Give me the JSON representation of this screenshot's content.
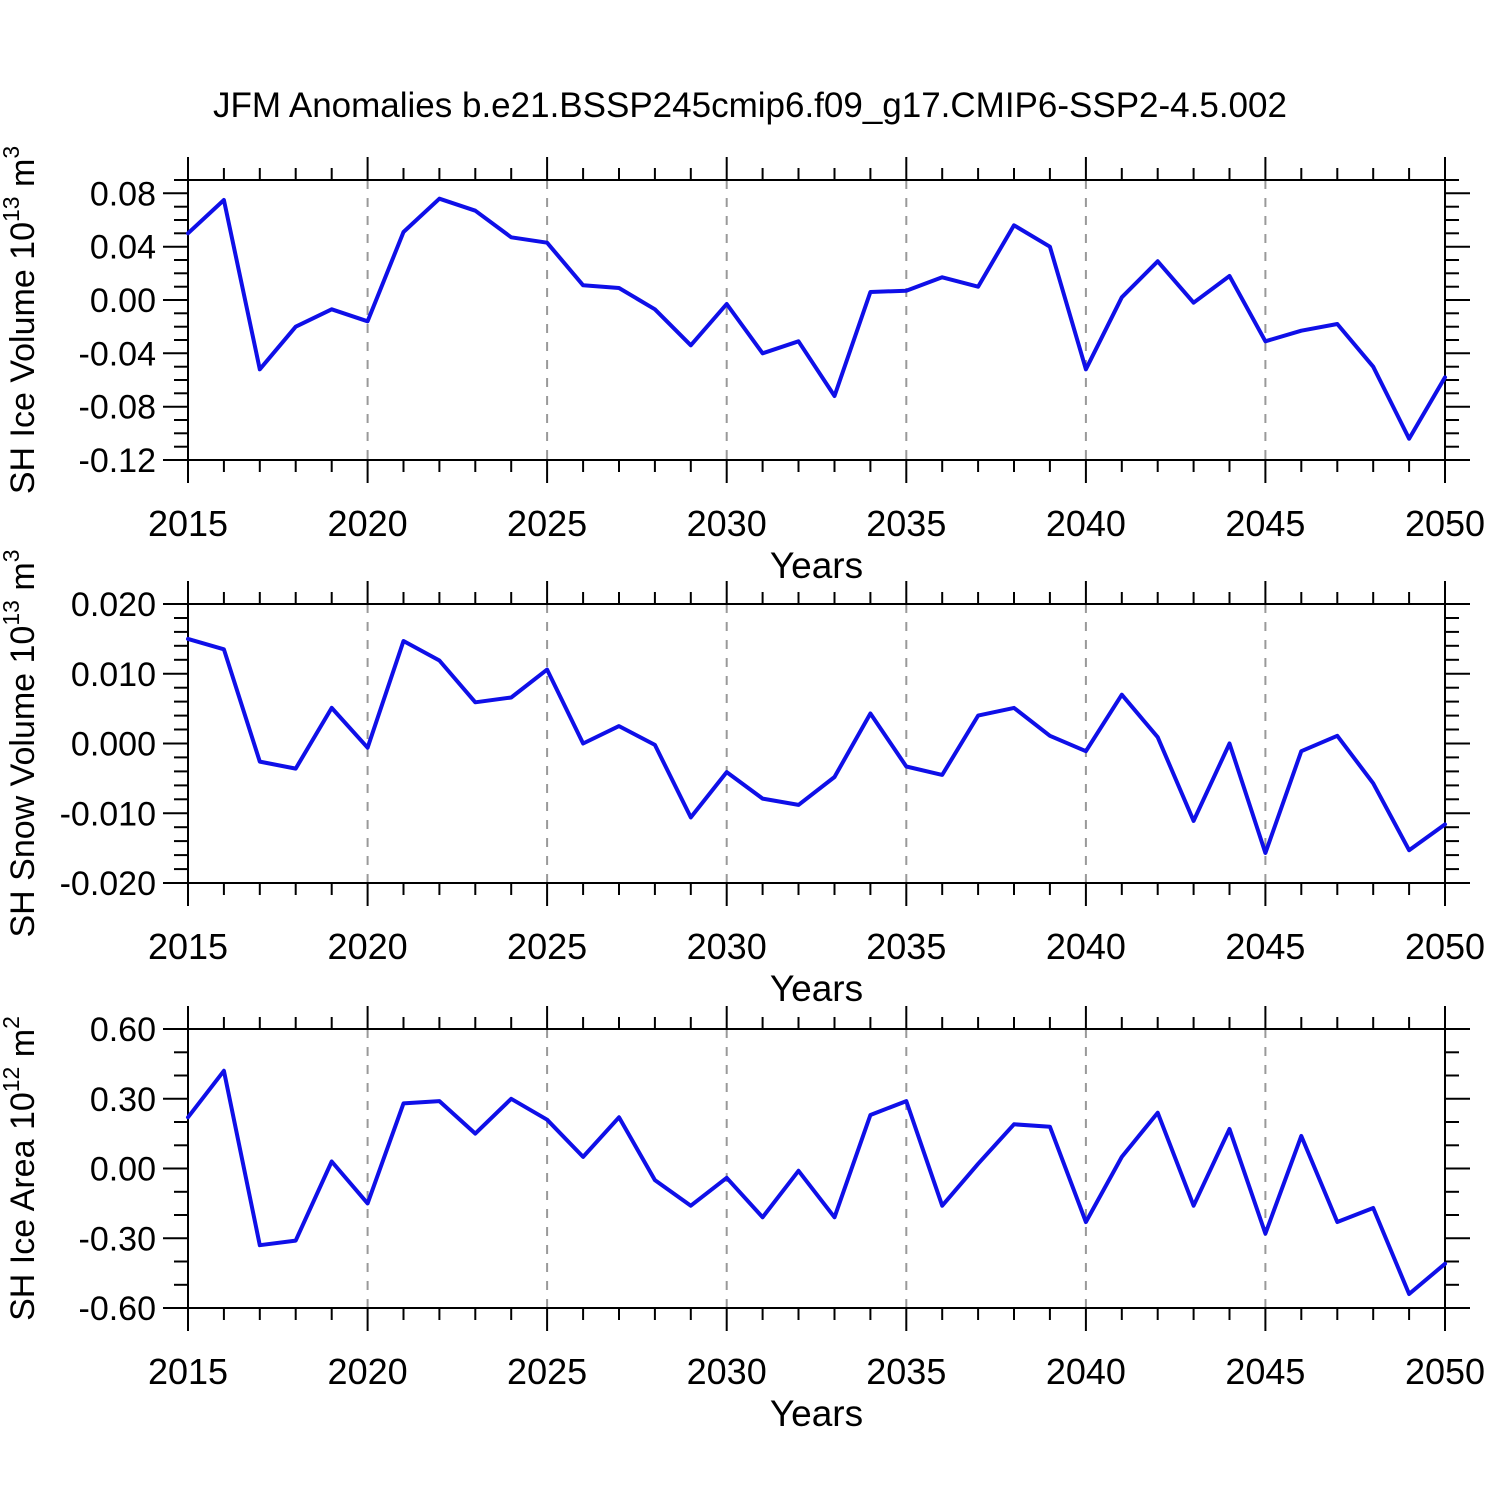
{
  "page": {
    "title": "JFM Anomalies b.e21.BSSP245cmip6.f09_g17.CMIP6-SSP2-4.5.002",
    "background_color": "#ffffff",
    "line_color": "#0f0fe8",
    "axis_color": "#000000",
    "grid_color": "#999999"
  },
  "chart_data": [
    {
      "type": "line",
      "panel": "sh-ice-volume",
      "xlabel": "Years",
      "ylabel_text": "SH Ice Volume 10^13 m^3",
      "ylabel_segments": [
        {
          "t": "SH Ice Volume 10",
          "sup": false
        },
        {
          "t": "13",
          "sup": true
        },
        {
          "t": " m",
          "sup": false
        },
        {
          "t": "3",
          "sup": true
        }
      ],
      "x": [
        2015,
        2016,
        2017,
        2018,
        2019,
        2020,
        2021,
        2022,
        2023,
        2024,
        2025,
        2026,
        2027,
        2028,
        2029,
        2030,
        2031,
        2032,
        2033,
        2034,
        2035,
        2036,
        2037,
        2038,
        2039,
        2040,
        2041,
        2042,
        2043,
        2044,
        2045,
        2046,
        2047,
        2048,
        2049,
        2050
      ],
      "series": [
        {
          "name": "SH Ice Volume anomaly",
          "values": [
            0.05,
            0.075,
            -0.052,
            -0.02,
            -0.007,
            -0.016,
            0.051,
            0.076,
            0.067,
            0.047,
            0.043,
            0.011,
            0.009,
            -0.007,
            -0.034,
            -0.003,
            -0.04,
            -0.031,
            -0.072,
            0.006,
            0.007,
            0.017,
            0.01,
            0.056,
            0.04,
            -0.052,
            0.002,
            0.029,
            -0.002,
            0.018,
            -0.031,
            -0.023,
            -0.018,
            -0.05,
            -0.104,
            -0.058
          ]
        }
      ],
      "xlim": [
        2015,
        2050
      ],
      "ylim": [
        -0.12,
        0.09
      ],
      "xticks": [
        2015,
        2020,
        2025,
        2030,
        2035,
        2040,
        2045,
        2050
      ],
      "xtick_labels": [
        "2015",
        "2020",
        "2025",
        "2030",
        "2035",
        "2040",
        "2045",
        "2050"
      ],
      "xtick_minor_step": 1,
      "yticks": [
        0.08,
        0.04,
        0.0,
        -0.04,
        -0.08,
        -0.12
      ],
      "ytick_labels": [
        "0.08",
        "0.04",
        "0.00",
        "-0.04",
        "-0.08",
        "-0.12"
      ],
      "ytick_minor_step": 0.01,
      "dashed_gridlines_x": [
        2020,
        2025,
        2030,
        2035,
        2040,
        2045
      ],
      "grid": "vertical-dashed",
      "legend": "none"
    },
    {
      "type": "line",
      "panel": "sh-snow-volume",
      "xlabel": "Years",
      "ylabel_text": "SH Snow Volume 10^13 m^3",
      "ylabel_segments": [
        {
          "t": "SH Snow Volume 10",
          "sup": false
        },
        {
          "t": "13",
          "sup": true
        },
        {
          "t": " m",
          "sup": false
        },
        {
          "t": "3",
          "sup": true
        }
      ],
      "x": [
        2015,
        2016,
        2017,
        2018,
        2019,
        2020,
        2021,
        2022,
        2023,
        2024,
        2025,
        2026,
        2027,
        2028,
        2029,
        2030,
        2031,
        2032,
        2033,
        2034,
        2035,
        2036,
        2037,
        2038,
        2039,
        2040,
        2041,
        2042,
        2043,
        2044,
        2045,
        2046,
        2047,
        2048,
        2049,
        2050
      ],
      "series": [
        {
          "name": "SH Snow Volume anomaly",
          "values": [
            0.015,
            0.0135,
            -0.0026,
            -0.0036,
            0.0051,
            -0.0006,
            0.0147,
            0.0119,
            0.0059,
            0.0066,
            0.0106,
            0.0,
            0.0025,
            -0.0002,
            -0.0106,
            -0.0041,
            -0.0079,
            -0.0088,
            -0.0048,
            0.0043,
            -0.0033,
            -0.0045,
            0.004,
            0.0051,
            0.0011,
            -0.0011,
            0.007,
            0.0009,
            -0.0111,
            0.0,
            -0.0157,
            -0.0011,
            0.0011,
            -0.0057,
            -0.0153,
            -0.0116
          ]
        }
      ],
      "xlim": [
        2015,
        2050
      ],
      "ylim": [
        -0.02,
        0.02
      ],
      "xticks": [
        2015,
        2020,
        2025,
        2030,
        2035,
        2040,
        2045,
        2050
      ],
      "xtick_labels": [
        "2015",
        "2020",
        "2025",
        "2030",
        "2035",
        "2040",
        "2045",
        "2050"
      ],
      "xtick_minor_step": 1,
      "yticks": [
        0.02,
        0.01,
        0.0,
        -0.01,
        -0.02
      ],
      "ytick_labels": [
        "0.020",
        "0.010",
        "0.000",
        "-0.010",
        "-0.020"
      ],
      "ytick_minor_step": 0.002,
      "dashed_gridlines_x": [
        2020,
        2025,
        2030,
        2035,
        2040,
        2045
      ],
      "grid": "vertical-dashed",
      "legend": "none"
    },
    {
      "type": "line",
      "panel": "sh-ice-area",
      "xlabel": "Years",
      "ylabel_text": "SH Ice Area 10^12 m^2",
      "ylabel_segments": [
        {
          "t": "SH Ice Area 10",
          "sup": false
        },
        {
          "t": "12",
          "sup": true
        },
        {
          "t": " m",
          "sup": false
        },
        {
          "t": "2",
          "sup": true
        }
      ],
      "x": [
        2015,
        2016,
        2017,
        2018,
        2019,
        2020,
        2021,
        2022,
        2023,
        2024,
        2025,
        2026,
        2027,
        2028,
        2029,
        2030,
        2031,
        2032,
        2033,
        2034,
        2035,
        2036,
        2037,
        2038,
        2039,
        2040,
        2041,
        2042,
        2043,
        2044,
        2045,
        2046,
        2047,
        2048,
        2049,
        2050
      ],
      "series": [
        {
          "name": "SH Ice Area anomaly",
          "values": [
            0.22,
            0.42,
            -0.33,
            -0.31,
            0.03,
            -0.15,
            0.28,
            0.29,
            0.15,
            0.3,
            0.21,
            0.05,
            0.22,
            -0.05,
            -0.16,
            -0.04,
            -0.21,
            -0.01,
            -0.21,
            0.23,
            0.29,
            -0.16,
            0.02,
            0.19,
            0.18,
            -0.23,
            0.05,
            0.24,
            -0.16,
            0.17,
            -0.28,
            0.14,
            -0.23,
            -0.17,
            -0.54,
            -0.41
          ]
        }
      ],
      "xlim": [
        2015,
        2050
      ],
      "ylim": [
        -0.6,
        0.6
      ],
      "xticks": [
        2015,
        2020,
        2025,
        2030,
        2035,
        2040,
        2045,
        2050
      ],
      "xtick_labels": [
        "2015",
        "2020",
        "2025",
        "2030",
        "2035",
        "2040",
        "2045",
        "2050"
      ],
      "xtick_minor_step": 1,
      "yticks": [
        0.6,
        0.3,
        0.0,
        -0.3,
        -0.6
      ],
      "ytick_labels": [
        "0.60",
        "0.30",
        "0.00",
        "-0.30",
        "-0.60"
      ],
      "ytick_minor_step": 0.1,
      "dashed_gridlines_x": [
        2020,
        2025,
        2030,
        2035,
        2040,
        2045
      ],
      "grid": "vertical-dashed",
      "legend": "none"
    }
  ]
}
